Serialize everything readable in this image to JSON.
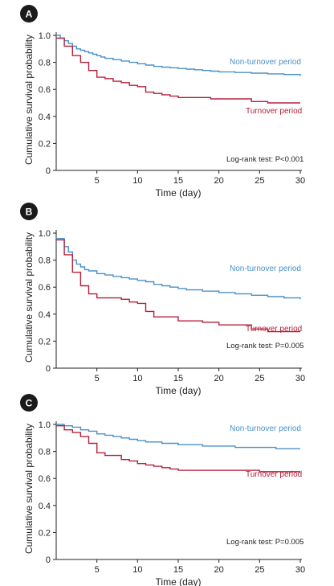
{
  "colors": {
    "non_turnover": "#4a90c8",
    "turnover": "#b5203a"
  },
  "chart_data": [
    {
      "type": "line",
      "panel": "A",
      "xlabel": "Time (day)",
      "ylabel": "Cumulative survival probability",
      "xlim": [
        0,
        30
      ],
      "ylim": [
        0,
        1.0
      ],
      "xticks": [
        5,
        10,
        15,
        20,
        25,
        30
      ],
      "yticks": [
        0,
        0.2,
        0.4,
        0.6,
        0.8,
        1.0
      ],
      "ytick_labels": [
        "0",
        "0.2",
        "0.4",
        "0.6",
        "0.8",
        "1.0"
      ],
      "grid": false,
      "annotation": "Log-rank test: P<0.001",
      "series": [
        {
          "name": "Non-turnover period",
          "color_key": "non_turnover",
          "x": [
            0,
            0.5,
            1,
            1.5,
            2,
            2.5,
            3,
            3.5,
            4,
            4.5,
            5,
            5.5,
            6,
            7,
            8,
            9,
            10,
            11,
            12,
            13,
            14,
            15,
            16,
            17,
            18,
            19,
            20,
            21,
            22,
            23,
            24,
            25,
            26,
            27,
            28,
            29,
            30
          ],
          "y": [
            1.0,
            0.98,
            0.96,
            0.94,
            0.92,
            0.9,
            0.89,
            0.88,
            0.87,
            0.86,
            0.85,
            0.84,
            0.83,
            0.82,
            0.81,
            0.8,
            0.79,
            0.78,
            0.77,
            0.765,
            0.76,
            0.755,
            0.75,
            0.745,
            0.74,
            0.735,
            0.73,
            0.73,
            0.725,
            0.725,
            0.72,
            0.72,
            0.715,
            0.715,
            0.71,
            0.71,
            0.7
          ]
        },
        {
          "name": "Turnover period",
          "color_key": "turnover",
          "x": [
            0,
            1,
            2,
            3,
            4,
            5,
            6,
            7,
            8,
            9,
            10,
            11,
            12,
            13,
            14,
            15,
            16,
            17,
            18,
            19,
            20,
            21,
            22,
            23,
            24,
            25,
            26,
            27,
            28,
            29,
            30
          ],
          "y": [
            0.98,
            0.92,
            0.85,
            0.8,
            0.74,
            0.69,
            0.68,
            0.66,
            0.65,
            0.63,
            0.62,
            0.58,
            0.57,
            0.56,
            0.55,
            0.54,
            0.54,
            0.54,
            0.54,
            0.53,
            0.53,
            0.53,
            0.53,
            0.53,
            0.51,
            0.51,
            0.5,
            0.5,
            0.5,
            0.5,
            0.5
          ]
        }
      ]
    },
    {
      "type": "line",
      "panel": "B",
      "xlabel": "Time (day)",
      "ylabel": "Cumulative survival probability",
      "xlim": [
        0,
        30
      ],
      "ylim": [
        0,
        1.0
      ],
      "xticks": [
        5,
        10,
        15,
        20,
        25,
        30
      ],
      "yticks": [
        0,
        0.2,
        0.4,
        0.6,
        0.8,
        1.0
      ],
      "ytick_labels": [
        "0",
        "0.2",
        "0.4",
        "0.6",
        "0.8",
        "1.0"
      ],
      "grid": false,
      "annotation": "Log-rank test: P=0.005",
      "series": [
        {
          "name": "Non-turnover period",
          "color_key": "non_turnover",
          "x": [
            0,
            1,
            1.5,
            2,
            2.5,
            3,
            3.5,
            4,
            5,
            6,
            7,
            8,
            9,
            10,
            11,
            12,
            13,
            14,
            15,
            16,
            17,
            18,
            19,
            20,
            21,
            22,
            23,
            24,
            25,
            26,
            27,
            28,
            29,
            30
          ],
          "y": [
            0.96,
            0.9,
            0.86,
            0.8,
            0.77,
            0.75,
            0.73,
            0.72,
            0.7,
            0.69,
            0.68,
            0.67,
            0.66,
            0.65,
            0.64,
            0.62,
            0.61,
            0.6,
            0.59,
            0.58,
            0.58,
            0.57,
            0.57,
            0.56,
            0.56,
            0.55,
            0.55,
            0.54,
            0.54,
            0.53,
            0.53,
            0.52,
            0.52,
            0.51
          ]
        },
        {
          "name": "Turnover period",
          "color_key": "turnover",
          "x": [
            0,
            1,
            2,
            3,
            4,
            5,
            6,
            7,
            8,
            9,
            10,
            11,
            12,
            13,
            14,
            15,
            16,
            17,
            18,
            19,
            20,
            21,
            22,
            23,
            24,
            25,
            26,
            27,
            28,
            29,
            30
          ],
          "y": [
            0.95,
            0.84,
            0.71,
            0.61,
            0.55,
            0.52,
            0.52,
            0.52,
            0.51,
            0.49,
            0.48,
            0.42,
            0.38,
            0.38,
            0.38,
            0.35,
            0.35,
            0.35,
            0.34,
            0.34,
            0.32,
            0.32,
            0.32,
            0.32,
            0.29,
            0.29,
            0.27,
            0.27,
            0.27,
            0.27,
            0.27
          ]
        }
      ]
    },
    {
      "type": "line",
      "panel": "C",
      "xlabel": "Time (day)",
      "ylabel": "Cumulative survival probability",
      "xlim": [
        0,
        30
      ],
      "ylim": [
        0,
        1.0
      ],
      "xticks": [
        5,
        10,
        15,
        20,
        25,
        30
      ],
      "yticks": [
        0,
        0.2,
        0.4,
        0.6,
        0.8,
        1.0
      ],
      "ytick_labels": [
        "0",
        "0.2",
        "0.4",
        "0.6",
        "0.8",
        "1.0"
      ],
      "grid": false,
      "annotation": "Log-rank test: P=0.005",
      "series": [
        {
          "name": "Non-turnover period",
          "color_key": "non_turnover",
          "x": [
            0,
            1,
            2,
            3,
            4,
            5,
            6,
            7,
            8,
            9,
            10,
            11,
            12,
            13,
            14,
            15,
            16,
            17,
            18,
            19,
            20,
            21,
            22,
            23,
            24,
            25,
            26,
            27,
            28,
            29,
            30
          ],
          "y": [
            1.0,
            0.99,
            0.98,
            0.96,
            0.95,
            0.93,
            0.92,
            0.91,
            0.9,
            0.89,
            0.88,
            0.87,
            0.87,
            0.86,
            0.86,
            0.85,
            0.85,
            0.85,
            0.84,
            0.84,
            0.84,
            0.84,
            0.83,
            0.83,
            0.83,
            0.83,
            0.83,
            0.82,
            0.82,
            0.82,
            0.82
          ]
        },
        {
          "name": "Turnover period",
          "color_key": "turnover",
          "x": [
            0,
            1,
            2,
            3,
            4,
            5,
            6,
            7,
            8,
            9,
            10,
            11,
            12,
            13,
            14,
            15,
            16,
            17,
            18,
            19,
            20,
            21,
            22,
            23,
            24,
            25,
            26,
            27,
            28,
            29,
            30
          ],
          "y": [
            0.99,
            0.96,
            0.94,
            0.91,
            0.86,
            0.79,
            0.77,
            0.77,
            0.74,
            0.73,
            0.71,
            0.7,
            0.69,
            0.68,
            0.67,
            0.66,
            0.66,
            0.66,
            0.66,
            0.66,
            0.66,
            0.66,
            0.66,
            0.66,
            0.66,
            0.65,
            0.65,
            0.65,
            0.65,
            0.65,
            0.65
          ]
        }
      ]
    }
  ]
}
